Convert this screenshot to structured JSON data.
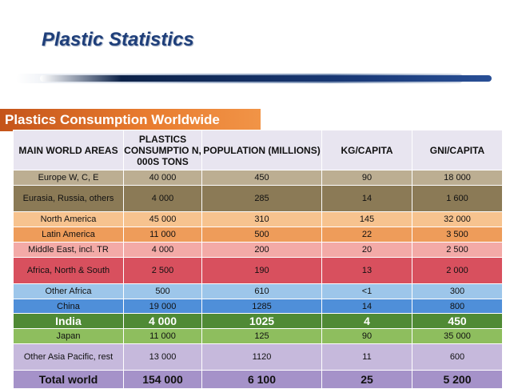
{
  "title": "Plastic Statistics",
  "subtitle": "Plastics Consumption Worldwide",
  "table": {
    "headers": [
      "MAIN WORLD AREAS",
      "PLASTICS CONSUMPTIO N, 000S TONS",
      "POPULATION (MILLIONS)",
      "KG/CAPITA",
      "GNI/CAPITA"
    ],
    "rows": [
      [
        "Europe W, C, E",
        "40 000",
        "450",
        "90",
        "18 000"
      ],
      [
        "Eurasia, Russia, others",
        "4 000",
        "285",
        "14",
        "1 600"
      ],
      [
        "North America",
        "45 000",
        "310",
        "145",
        "32 000"
      ],
      [
        "Latin America",
        "11 000",
        "500",
        "22",
        "3 500"
      ],
      [
        "Middle East, incl. TR",
        "4 000",
        "200",
        "20",
        "2 500"
      ],
      [
        "Africa, North & South",
        "2 500",
        "190",
        "13",
        "2 000"
      ],
      [
        "Other Africa",
        "500",
        "610",
        "<1",
        "300"
      ],
      [
        "China",
        "19 000",
        "1285",
        "14",
        "800"
      ],
      [
        "India",
        "4 000",
        "1025",
        "4",
        "450"
      ],
      [
        "Japan",
        "11 000",
        "125",
        "90",
        "35 000"
      ],
      [
        "Other Asia Pacific, rest",
        "13 000",
        "1120",
        "11",
        "600"
      ],
      [
        "Total world",
        "154 000",
        "6 100",
        "25",
        "5 200"
      ]
    ]
  }
}
